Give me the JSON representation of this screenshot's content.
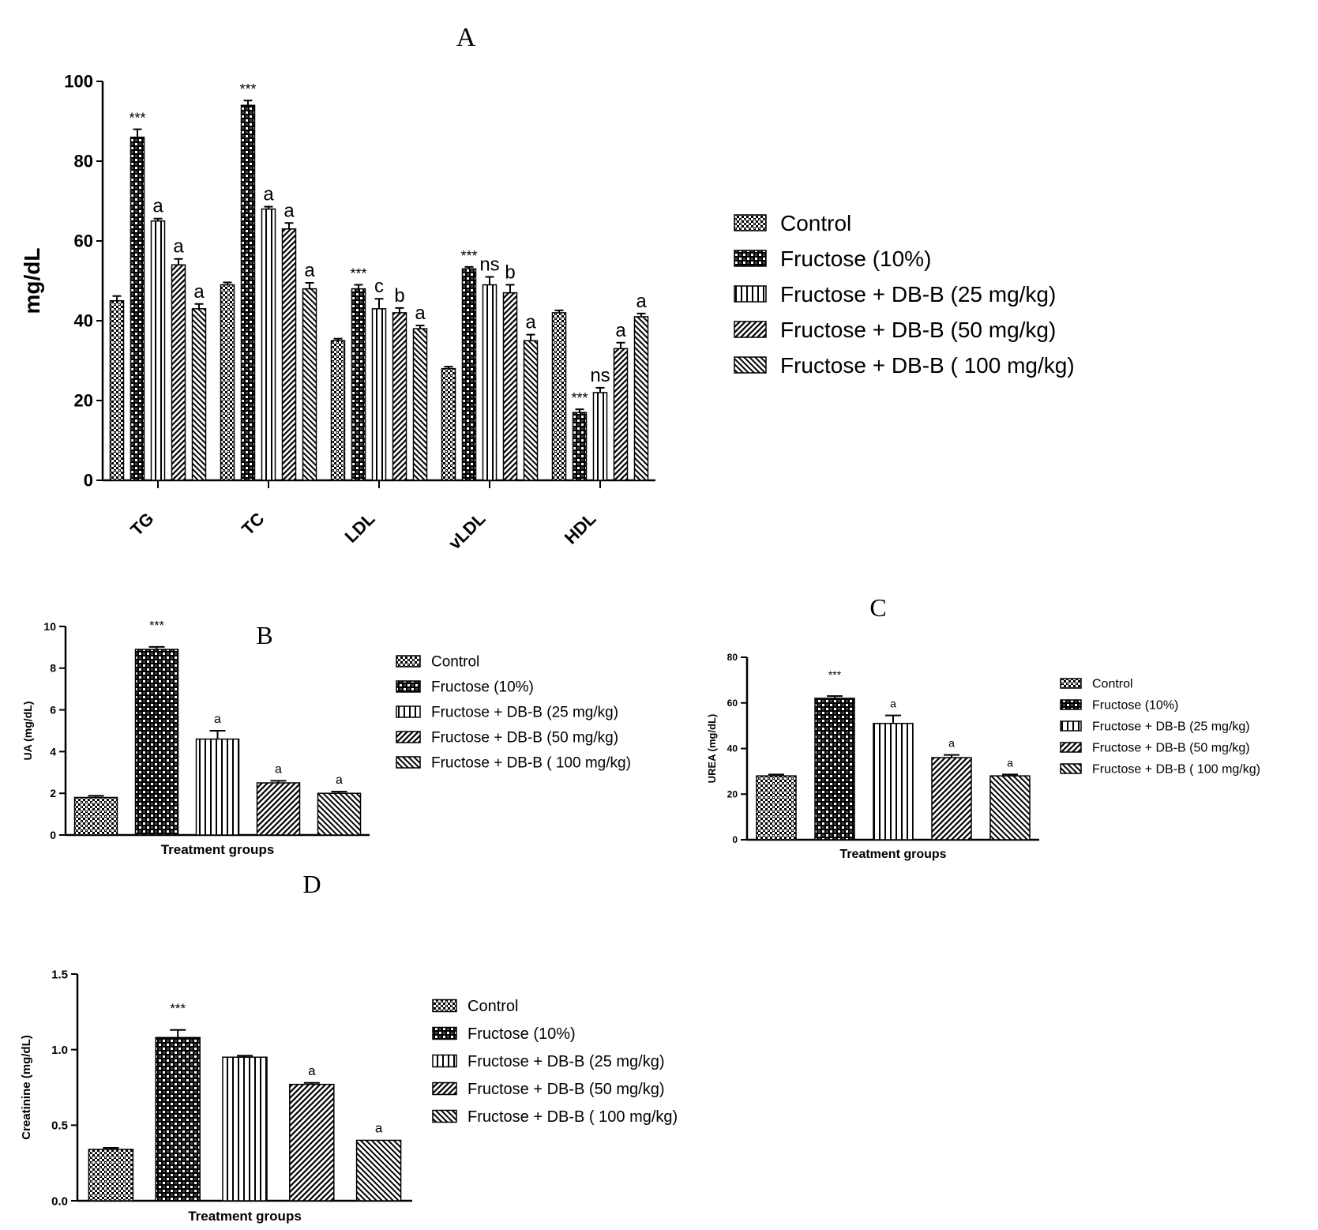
{
  "groups": [
    "Control",
    "Fructose (10%)",
    "Fructose + DB-B (25 mg/kg)",
    "Fructose + DB-B (50 mg/kg)",
    "Fructose + DB-B ( 100 mg/kg)"
  ],
  "colors": {
    "bar_fill": "#ffffff",
    "ink": "#000000"
  },
  "chart_data": [
    {
      "panel": "A",
      "type": "bar",
      "title": "A",
      "xlabel": "",
      "ylabel": "mg/dL",
      "ylim": [
        0,
        100
      ],
      "yticks": [
        "0",
        "20",
        "40",
        "60",
        "80",
        "100"
      ],
      "categories": [
        "TG",
        "TC",
        "LDL",
        "vLDL",
        "HDL"
      ],
      "legend_position": "right",
      "series": [
        {
          "name": "Control",
          "values": [
            45,
            49,
            35,
            28,
            42
          ],
          "errors": [
            1.2,
            0.6,
            0.5,
            0.5,
            0.6
          ],
          "labels": [
            "",
            "",
            "",
            "",
            ""
          ]
        },
        {
          "name": "Fructose (10%)",
          "values": [
            86,
            94,
            48,
            53,
            17
          ],
          "errors": [
            2,
            1.2,
            1,
            0.5,
            0.8
          ],
          "labels": [
            "***",
            "***",
            "***",
            "***",
            "***"
          ]
        },
        {
          "name": "Fructose + DB-B (25 mg/kg)",
          "values": [
            65,
            68,
            43,
            49,
            22
          ],
          "errors": [
            0.6,
            0.6,
            2.5,
            2,
            1.2
          ],
          "labels": [
            "a",
            "a",
            "c",
            "ns",
            "ns"
          ]
        },
        {
          "name": "Fructose + DB-B (50 mg/kg)",
          "values": [
            54,
            63,
            42,
            47,
            33
          ],
          "errors": [
            1.5,
            1.5,
            1.2,
            2,
            1.5
          ],
          "labels": [
            "a",
            "a",
            "b",
            "b",
            "a"
          ]
        },
        {
          "name": "Fructose + DB-B ( 100 mg/kg)",
          "values": [
            43,
            48,
            38,
            35,
            41
          ],
          "errors": [
            1.2,
            1.5,
            0.8,
            1.5,
            0.8
          ],
          "labels": [
            "a",
            "a",
            "a",
            "a",
            "a"
          ]
        }
      ]
    },
    {
      "panel": "B",
      "type": "bar",
      "title": "B",
      "xlabel": "Treatment groups",
      "ylabel": "UA (mg/dL)",
      "ylim": [
        0,
        10
      ],
      "yticks": [
        "0",
        "2",
        "4",
        "6",
        "8",
        "10"
      ],
      "categories": [
        "Control",
        "Fructose (10%)",
        "Fructose + DB-B (25 mg/kg)",
        "Fructose + DB-B (50 mg/kg)",
        "Fructose + DB-B ( 100 mg/kg)"
      ],
      "values": [
        1.8,
        8.9,
        4.6,
        2.5,
        2.0
      ],
      "errors": [
        0.08,
        0.12,
        0.4,
        0.1,
        0.08
      ],
      "labels": [
        "",
        "***",
        "a",
        "a",
        "a"
      ],
      "legend_position": "right"
    },
    {
      "panel": "C",
      "type": "bar",
      "title": "C",
      "xlabel": "Treatment groups",
      "ylabel": "UREA (mg/dL)",
      "ylim": [
        0,
        80
      ],
      "yticks": [
        "0",
        "20",
        "40",
        "60",
        "80"
      ],
      "categories": [
        "Control",
        "Fructose (10%)",
        "Fructose + DB-B (25 mg/kg)",
        "Fructose + DB-B (50 mg/kg)",
        "Fructose + DB-B ( 100 mg/kg)"
      ],
      "values": [
        28,
        62,
        51,
        36,
        28
      ],
      "errors": [
        0.6,
        1,
        3.5,
        1.2,
        0.6
      ],
      "labels": [
        "",
        "***",
        "a",
        "a",
        "a"
      ],
      "legend_position": "right"
    },
    {
      "panel": "D",
      "type": "bar",
      "title": "D",
      "xlabel": "Treatment groups",
      "ylabel": "Creatinine (mg/dL)",
      "ylim": [
        0,
        1.5
      ],
      "yticks": [
        "0.0",
        "0.5",
        "1.0",
        "1.5"
      ],
      "categories": [
        "Control",
        "Fructose (10%)",
        "Fructose + DB-B (25 mg/kg)",
        "Fructose + DB-B (50 mg/kg)",
        "Fructose + DB-B ( 100 mg/kg)"
      ],
      "values": [
        0.34,
        1.08,
        0.95,
        0.77,
        0.4
      ],
      "errors": [
        0.01,
        0.05,
        0.01,
        0.01,
        0.0
      ],
      "labels": [
        "",
        "***",
        "",
        "a",
        "a"
      ],
      "legend_position": "right"
    }
  ]
}
